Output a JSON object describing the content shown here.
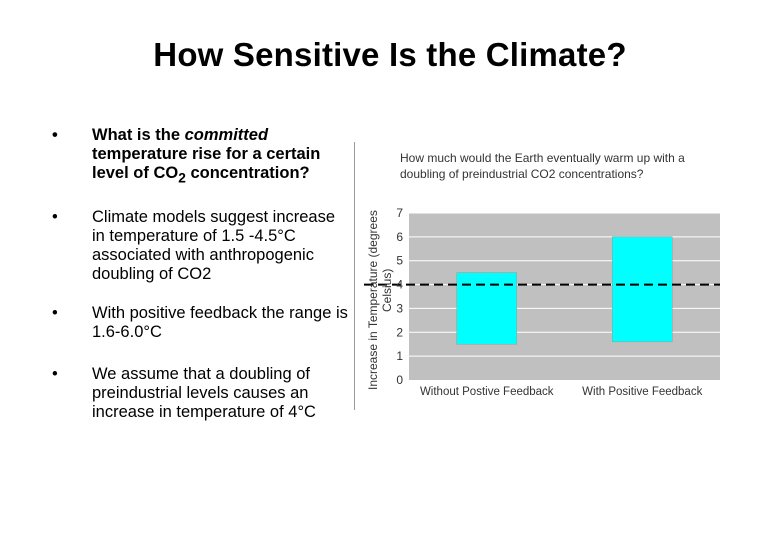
{
  "slide": {
    "title": "How Sensitive Is the Climate?"
  },
  "bullets": {
    "b1": {
      "part1": "What is the ",
      "italic": "committed",
      "part2": " temperature rise for a certain level of CO",
      "sub": "2",
      "part3": " concentration?"
    },
    "b2": "Climate models suggest increase in temperature of 1.5 -4.5°C associated with anthropogenic doubling of CO2",
    "b3": "With positive feedback the range is 1.6-6.0°C",
    "b4": "We assume that a doubling of preindustrial levels causes an increase in temperature of 4°C",
    "marker": "•"
  },
  "chart_data": {
    "type": "bar",
    "title": "How much would the Earth eventually warm up with a doubling of preindustrial CO2 concentrations?",
    "title_line1": "How much would the Earth eventually warm up with a",
    "title_line2": "doubling of preindustrial CO2 concentrations?",
    "ylabel": "Increase in Temperature (degrees Celsius)",
    "ylabel_line1": "Increase in Temperature (degrees",
    "ylabel_line2": "Celsius)",
    "ylim": [
      0,
      7
    ],
    "yticks": [
      "0",
      "1",
      "2",
      "3",
      "4",
      "5",
      "6",
      "7"
    ],
    "categories": [
      "Without Postive Feedback",
      "With Positive Feedback"
    ],
    "ranges": [
      [
        1.5,
        4.5
      ],
      [
        1.6,
        6.0
      ]
    ],
    "reference_line": 4,
    "colors": {
      "bar": "#00ffff",
      "plot_bg": "#c0c0c0",
      "grid": "#ffffff",
      "reference": "#000000"
    }
  }
}
